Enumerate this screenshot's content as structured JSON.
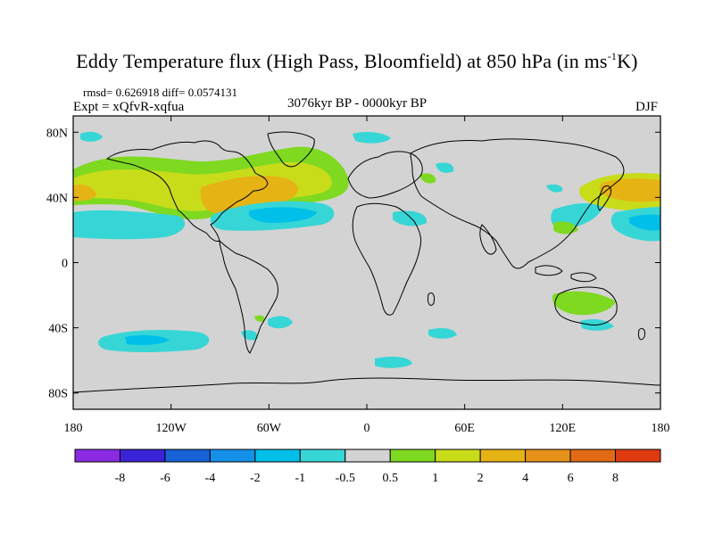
{
  "title": {
    "main": "Eddy Temperature flux (High Pass, Bloomfield) at 850 hPa (in ms",
    "sup": "-1",
    "tail": "K)"
  },
  "stats": "rmsd= 0.626918 diff= 0.0574131",
  "experiment": "Expt = xQfvR-xqfua",
  "period": "3076kyr BP - 0000kyr BP",
  "season": "DJF",
  "map": {
    "projection": "cylindrical equidistant",
    "lon_range": [
      -180,
      180
    ],
    "lat_range": [
      -90,
      90
    ],
    "lat_ticks": [
      "80N",
      "40N",
      "0",
      "40S",
      "80S"
    ],
    "lon_ticks": [
      "180",
      "120W",
      "60W",
      "0",
      "60E",
      "120E",
      "180"
    ],
    "background_color": "#d3d3d3",
    "anomaly_regions": [
      {
        "name": "north-atlantic-warm",
        "lon": [
          -100,
          -10
        ],
        "lat": [
          28,
          62
        ],
        "value": 4
      },
      {
        "name": "north-pacific-warm",
        "lon": [
          -180,
          -120
        ],
        "lat": [
          30,
          55
        ],
        "value": 2
      },
      {
        "name": "west-pacific-warm",
        "lon": [
          140,
          180
        ],
        "lat": [
          30,
          50
        ],
        "value": 4
      },
      {
        "name": "subtropical-atlantic-cool",
        "lon": [
          -80,
          -20
        ],
        "lat": [
          18,
          38
        ],
        "value": -2
      },
      {
        "name": "subtropical-pacific-cool",
        "lon": [
          -180,
          -120
        ],
        "lat": [
          15,
          35
        ],
        "value": -2
      },
      {
        "name": "east-asia-cool",
        "lon": [
          120,
          150
        ],
        "lat": [
          20,
          35
        ],
        "value": -1
      },
      {
        "name": "south-pacific-cool",
        "lon": [
          -150,
          -100
        ],
        "lat": [
          -50,
          -40
        ],
        "value": -1
      },
      {
        "name": "australia-warm",
        "lon": [
          130,
          150
        ],
        "lat": [
          -40,
          -25
        ],
        "value": 1
      }
    ]
  },
  "colorbar": {
    "labels": [
      "-8",
      "-6",
      "-4",
      "-2",
      "-1",
      "-0.5",
      "0.5",
      "1",
      "2",
      "4",
      "6",
      "8"
    ],
    "colors": [
      "#8a2be2",
      "#3a22d6",
      "#1763d6",
      "#1590e8",
      "#00bfe8",
      "#37d6d6",
      "#d3d3d3",
      "#7fd920",
      "#c8dc1a",
      "#e6b314",
      "#e6911a",
      "#e26a14",
      "#e03a10"
    ]
  }
}
